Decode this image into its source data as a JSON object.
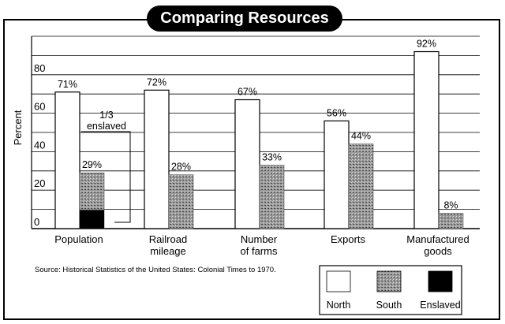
{
  "chart_data": {
    "type": "bar",
    "title": "Comparing Resources",
    "ylabel": "Percent",
    "xlabel": "",
    "ylim": [
      0,
      100
    ],
    "yticks": [
      0,
      20,
      40,
      60,
      80
    ],
    "grid": true,
    "legend_position": "bottom-right",
    "categories": [
      "Population",
      "Railroad\nmileage",
      "Number\nof farms",
      "Exports",
      "Manufactured\ngoods"
    ],
    "series": [
      {
        "name": "North",
        "values": [
          71,
          72,
          67,
          56,
          92
        ],
        "labels": [
          "71%",
          "72%",
          "67%",
          "56%",
          "92%"
        ],
        "color": "#ffffff"
      },
      {
        "name": "South",
        "values": [
          29,
          28,
          33,
          44,
          8
        ],
        "labels": [
          "29%",
          "28%",
          "33%",
          "44%",
          "8%"
        ],
        "color": "#8c8c8c"
      }
    ],
    "enslaved": {
      "name": "Enslaved",
      "category_index": 0,
      "value": 9.7,
      "color": "#000000"
    },
    "annotation": {
      "lines": [
        "1/3",
        "enslaved"
      ]
    },
    "source": "Source: Historical Statistics of the United States: Colonial Times to 1970."
  }
}
